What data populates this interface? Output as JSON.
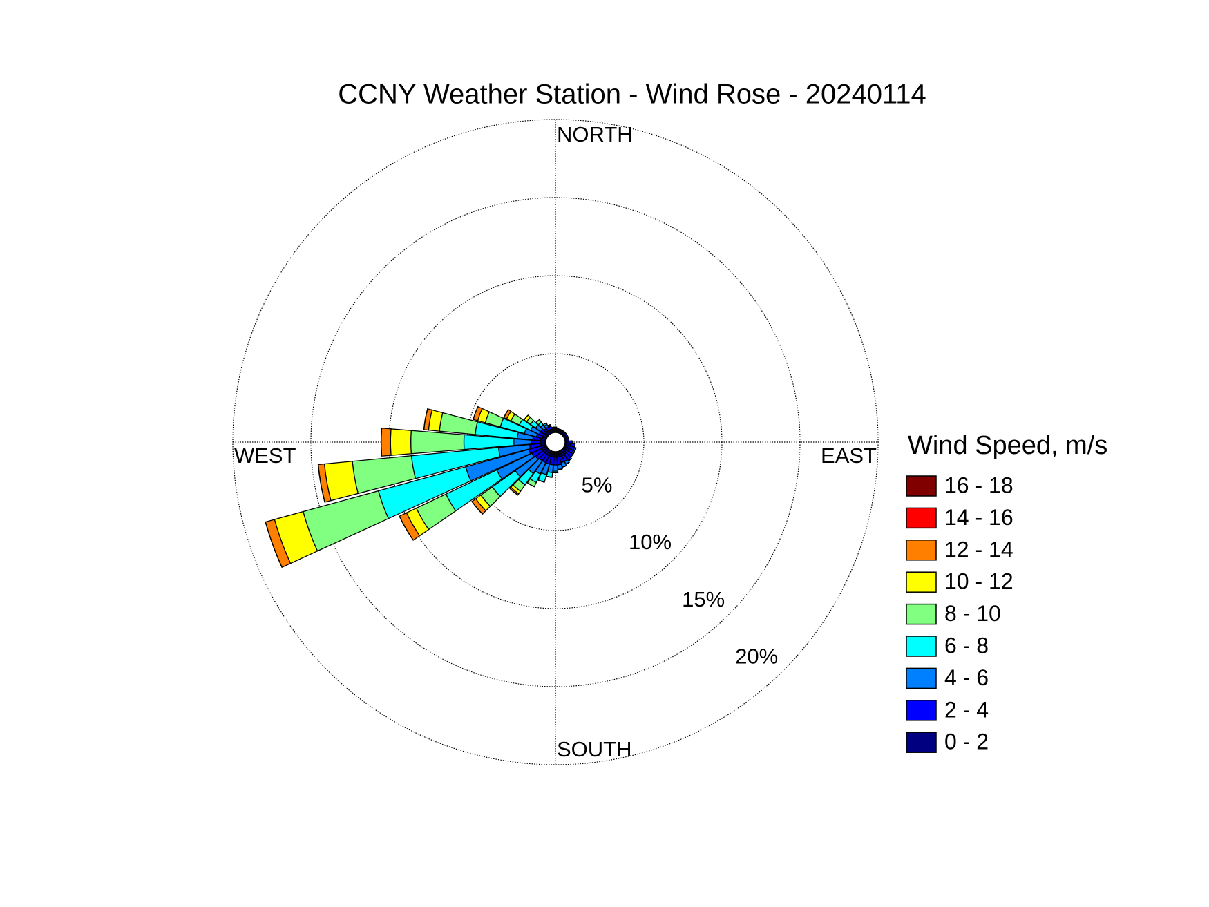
{
  "chart_data": {
    "type": "windrose",
    "title": "CCNY Weather Station - Wind Rose - 20240114",
    "direction_labels": [
      "NORTH",
      "EAST",
      "SOUTH",
      "WEST"
    ],
    "directions": [
      0,
      10,
      20,
      30,
      40,
      50,
      60,
      70,
      80,
      90,
      100,
      110,
      120,
      130,
      140,
      150,
      160,
      170,
      180,
      190,
      200,
      210,
      220,
      230,
      240,
      250,
      260,
      270,
      280,
      290,
      300,
      310,
      320,
      330,
      340,
      350
    ],
    "rlim": [
      0,
      20
    ],
    "rticks": [
      {
        "value": 5,
        "label": "5%"
      },
      {
        "value": 10,
        "label": "10%"
      },
      {
        "value": 15,
        "label": "15%"
      },
      {
        "value": 20,
        "label": "20%"
      }
    ],
    "legend_title": "Wind Speed, m/s",
    "series": [
      {
        "name": "0 - 2",
        "color": "#000080",
        "values": [
          0.2,
          0.1,
          0.1,
          0.1,
          0.1,
          0.1,
          0.1,
          0.1,
          0.1,
          0.2,
          0.3,
          0.3,
          0.3,
          0.3,
          0.3,
          0.3,
          0.3,
          0.3,
          0.3,
          0.3,
          0.3,
          0.3,
          0.3,
          0.3,
          0.3,
          0.3,
          0.3,
          0.3,
          0.3,
          0.2,
          0.2,
          0.2,
          0.2,
          0.2,
          0.2,
          0.2
        ]
      },
      {
        "name": "2 - 4",
        "color": "#0000ff",
        "values": [
          0.1,
          0.1,
          0.1,
          0.1,
          0.1,
          0.1,
          0.1,
          0.1,
          0.1,
          0.2,
          0.3,
          0.3,
          0.3,
          0.4,
          0.4,
          0.4,
          0.4,
          0.5,
          0.5,
          0.5,
          0.5,
          0.5,
          0.5,
          0.6,
          0.7,
          0.8,
          0.7,
          0.6,
          0.5,
          0.4,
          0.3,
          0.3,
          0.2,
          0.2,
          0.2,
          0.1
        ]
      },
      {
        "name": "4 - 6",
        "color": "#0080ff",
        "values": [
          0,
          0,
          0,
          0,
          0,
          0,
          0,
          0,
          0,
          0,
          0,
          0.1,
          0.1,
          0,
          0.1,
          0.2,
          0.3,
          0.3,
          0.4,
          0.5,
          0.7,
          0.8,
          1,
          1.6,
          2.5,
          4.2,
          2,
          1.1,
          1,
          0.8,
          0.6,
          0.4,
          0.3,
          0.2,
          0.1,
          0
        ]
      },
      {
        "name": "6 - 8",
        "color": "#00ffff",
        "values": [
          0,
          0,
          0,
          0,
          0,
          0,
          0,
          0,
          0,
          0,
          0,
          0,
          0,
          0,
          0,
          0,
          0,
          0,
          0.1,
          0.3,
          0.5,
          0.6,
          0.9,
          1.8,
          3.6,
          5.8,
          5.6,
          3.2,
          2.7,
          1.6,
          0.8,
          0.4,
          0.2,
          0.1,
          0,
          0
        ]
      },
      {
        "name": "8 - 10",
        "color": "#80ff80",
        "values": [
          0,
          0,
          0,
          0,
          0,
          0,
          0,
          0,
          0,
          0,
          0,
          0,
          0,
          0,
          0,
          0,
          0,
          0,
          0,
          0,
          0,
          0.3,
          0.5,
          0.9,
          2.1,
          5,
          3.8,
          3.4,
          2.3,
          1,
          0.6,
          0.3,
          0.2,
          0,
          0,
          0
        ]
      },
      {
        "name": "10 - 12",
        "color": "#ffff00",
        "values": [
          0,
          0,
          0,
          0,
          0,
          0,
          0,
          0,
          0,
          0,
          0,
          0,
          0,
          0,
          0,
          0,
          0,
          0,
          0,
          0,
          0,
          0,
          0.2,
          0.4,
          0.7,
          1.9,
          1.8,
          1.3,
          0.7,
          0.5,
          0.3,
          0.2,
          0,
          0,
          0,
          0
        ]
      },
      {
        "name": "12 - 14",
        "color": "#ff8000",
        "values": [
          0,
          0,
          0,
          0,
          0,
          0,
          0,
          0,
          0,
          0,
          0,
          0,
          0,
          0,
          0,
          0,
          0,
          0,
          0,
          0,
          0,
          0,
          0.1,
          0.3,
          0.5,
          0.6,
          0.4,
          0.6,
          0.3,
          0.3,
          0.2,
          0,
          0,
          0,
          0,
          0
        ]
      },
      {
        "name": "14 - 16",
        "color": "#ff0000",
        "values": [
          0,
          0,
          0,
          0,
          0,
          0,
          0,
          0,
          0,
          0,
          0,
          0,
          0,
          0,
          0,
          0,
          0,
          0,
          0,
          0,
          0,
          0,
          0,
          0,
          0,
          0,
          0,
          0,
          0,
          0,
          0,
          0,
          0,
          0,
          0,
          0
        ]
      },
      {
        "name": "16 - 18",
        "color": "#800000",
        "values": [
          0,
          0,
          0,
          0,
          0,
          0,
          0,
          0,
          0,
          0,
          0,
          0,
          0,
          0,
          0,
          0,
          0,
          0,
          0,
          0,
          0,
          0,
          0,
          0,
          0,
          0,
          0,
          0,
          0,
          0,
          0,
          0,
          0,
          0,
          0,
          0
        ]
      }
    ],
    "grid": true,
    "legend": "right"
  }
}
